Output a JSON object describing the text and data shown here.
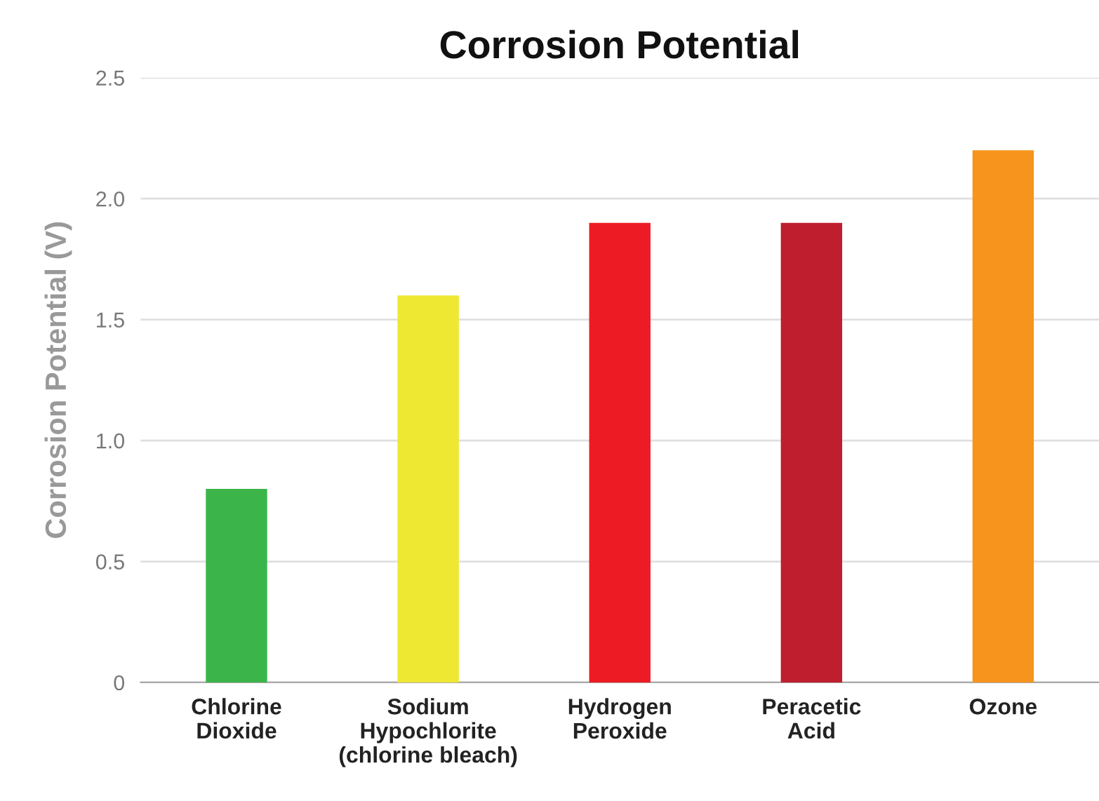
{
  "chart_data": {
    "type": "bar",
    "title": "Corrosion Potential",
    "ylabel": "Corrosion Potential (V)",
    "categories": [
      "Chlorine\nDioxide",
      "Sodium\nHypochlorite\n(chlorine bleach)",
      "Hydrogen\nPeroxide",
      "Peracetic\nAcid",
      "Ozone"
    ],
    "values": [
      0.8,
      1.6,
      1.9,
      1.9,
      2.2
    ],
    "colors": [
      "#3bb54a",
      "#eee833",
      "#ed1c24",
      "#be1e2d",
      "#f7941d"
    ],
    "ylim": [
      0,
      2.5
    ],
    "yticks": [
      {
        "value": 0,
        "label": "0"
      },
      0.5,
      {
        "value": 1,
        "label": "1.0"
      },
      1.5,
      {
        "value": 2,
        "label": "2.0"
      },
      2.5
    ],
    "grid": "y"
  }
}
